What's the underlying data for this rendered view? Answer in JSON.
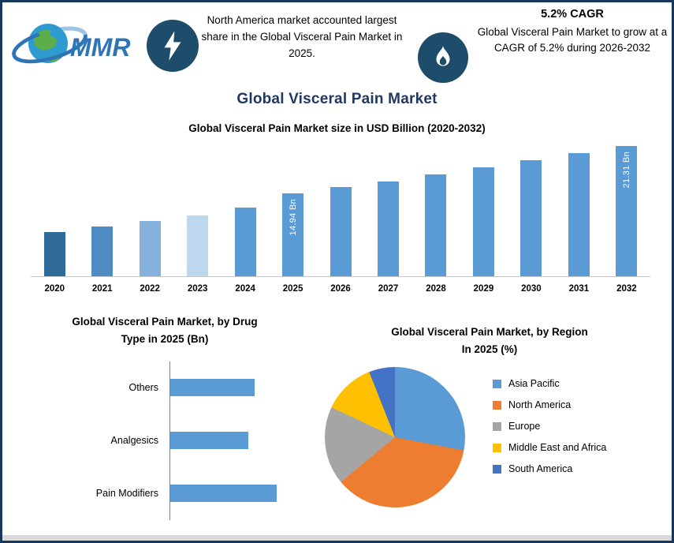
{
  "logo": {
    "text": "MMR"
  },
  "header": {
    "left_note": "North America market accounted largest share in the Global Visceral Pain Market in 2025.",
    "cagr_title": "5.2% CAGR",
    "cagr_note": "Global Visceral Pain Market to grow at a CAGR of 5.2% during 2026-2032"
  },
  "page_title": "Global Visceral Pain Market",
  "colors": {
    "border": "#16365C",
    "icon_circle": "#1D4D6B",
    "title_navy": "#1F3864",
    "primary_bar": "#5B9BD5"
  },
  "chart_data": [
    {
      "id": "market-size",
      "type": "bar",
      "title": "Global Visceral Pain Market size in USD Billion (2020-2032)",
      "categories": [
        "2020",
        "2021",
        "2022",
        "2023",
        "2024",
        "2025",
        "2026",
        "2027",
        "2028",
        "2029",
        "2030",
        "2031",
        "2032"
      ],
      "values": [
        9.9,
        10.6,
        11.3,
        12.1,
        13.1,
        14.94,
        15.8,
        16.6,
        17.5,
        18.4,
        19.4,
        20.3,
        21.31
      ],
      "bar_colors": [
        "#2F6B99",
        "#4D8BC2",
        "#85B2DC",
        "#BDD7EE",
        "#5B9BD5",
        "#5B9BD5",
        "#5B9BD5",
        "#5B9BD5",
        "#5B9BD5",
        "#5B9BD5",
        "#5B9BD5",
        "#5B9BD5",
        "#5B9BD5"
      ],
      "data_labels": {
        "2025": "14.94 Bn",
        "2032": "21.31 Bn"
      },
      "ylim": [
        4,
        22
      ],
      "xlabel": "",
      "ylabel": "",
      "grid": false,
      "legend_position": "none"
    },
    {
      "id": "drug-type",
      "type": "bar",
      "orientation": "horizontal",
      "title": "Global Visceral Pain Market, by Drug\nType in 2025 (Bn)",
      "categories": [
        "Others",
        "Analgesics",
        "Pain Modifiers"
      ],
      "values": [
        5.0,
        4.6,
        6.3
      ],
      "bar_color": "#5B9BD5",
      "xlim": [
        0,
        7
      ],
      "grid": false,
      "legend_position": "none"
    },
    {
      "id": "region-share",
      "type": "pie",
      "title": "Global Visceral Pain Market, by Region\nIn 2025 (%)",
      "slices": [
        {
          "label": "Asia Pacific",
          "value": 28,
          "color": "#5B9BD5"
        },
        {
          "label": "North America",
          "value": 36,
          "color": "#ED7D31"
        },
        {
          "label": "Europe",
          "value": 18,
          "color": "#A5A5A5"
        },
        {
          "label": "Middle East and Africa",
          "value": 12,
          "color": "#FFC000"
        },
        {
          "label": "South America",
          "value": 6,
          "color": "#4472C4"
        }
      ],
      "legend_position": "right"
    }
  ]
}
